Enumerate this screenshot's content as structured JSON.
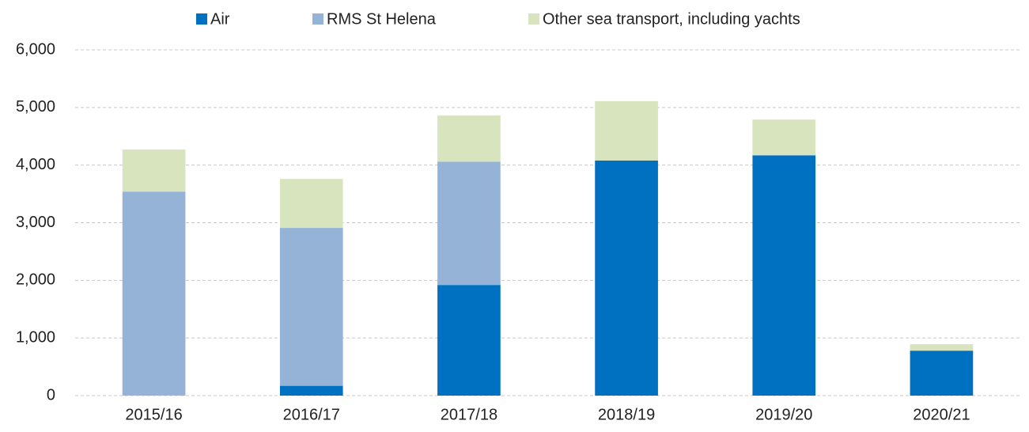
{
  "chart_data": {
    "type": "stacked_bar",
    "categories": [
      "2015/16",
      "2016/17",
      "2017/18",
      "2018/19",
      "2019/20",
      "2020/21"
    ],
    "series": [
      {
        "name": "Air",
        "color": "#0070c0",
        "values": [
          0,
          170,
          1920,
          4080,
          4170,
          780
        ]
      },
      {
        "name": "RMS St Helena",
        "color": "#95b3d7",
        "values": [
          3540,
          2740,
          2140,
          0,
          0,
          0
        ]
      },
      {
        "name": "Other sea transport, including yachts",
        "color": "#d7e4bd",
        "values": [
          730,
          850,
          800,
          1030,
          620,
          110
        ]
      }
    ],
    "ylim": [
      0,
      6000
    ],
    "yticks": [
      0,
      {
        "value": 1000,
        "label": "1,000"
      },
      {
        "value": 2000,
        "label": "2,000"
      },
      {
        "value": 3000,
        "label": "3,000"
      },
      {
        "value": 4000,
        "label": "4,000"
      },
      {
        "value": 5000,
        "label": "5,000"
      },
      {
        "value": 6000,
        "label": "6,000"
      }
    ],
    "grid": true,
    "legend": "top"
  }
}
